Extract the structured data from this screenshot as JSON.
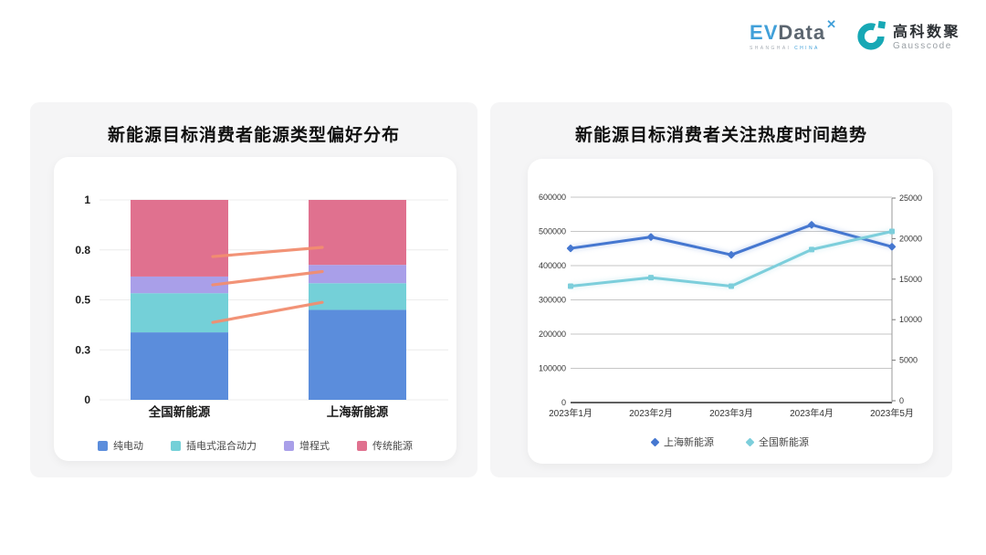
{
  "logos": {
    "evdata": {
      "ev": "EV",
      "data": "Data",
      "mark": "✕",
      "sub_left": "SHANGHAI",
      "sub_right": "CHINA",
      "accent": "#41A0D9",
      "text_color": "#5C6670"
    },
    "gausscode": {
      "cn": "高科数聚",
      "en": "Gausscode",
      "accent": "#17A8B5",
      "text_color": "#2B2F33"
    }
  },
  "chart_data": [
    {
      "type": "bar",
      "stacked": true,
      "title": "新能源目标消费者能源类型偏好分布",
      "categories": [
        "全国新能源",
        "上海新能源"
      ],
      "series": [
        {
          "name": "纯电动",
          "color": "#5B8DDC",
          "values": [
            0.37,
            0.46
          ]
        },
        {
          "name": "插电式混合动力",
          "color": "#74D0D8",
          "values": [
            0.17,
            0.14
          ]
        },
        {
          "name": "增程式",
          "color": "#A99FE9",
          "values": [
            0.1,
            0.11
          ]
        },
        {
          "name": "传统能源",
          "color": "#E0718F",
          "values": [
            0.36,
            0.29
          ]
        }
      ],
      "y_ticks": [
        0,
        0.3,
        0.5,
        0.8,
        1
      ],
      "ylim": [
        0,
        1
      ],
      "grid": true,
      "legend_position": "bottom",
      "connectors": {
        "color": "#F28E70",
        "lines": [
          {
            "from": 0.76,
            "to": 0.81
          },
          {
            "from": 0.59,
            "to": 0.67
          },
          {
            "from": 0.41,
            "to": 0.49
          }
        ]
      }
    },
    {
      "type": "line",
      "title": "新能源目标消费者关注热度时间趋势",
      "x": [
        "2023年1月",
        "2023年2月",
        "2023年3月",
        "2023年4月",
        "2023年5月"
      ],
      "series": [
        {
          "name": "上海新能源",
          "color": "#4577D0",
          "axis": "right",
          "marker": "diamond",
          "values": [
            18800,
            20200,
            18000,
            21700,
            19000
          ]
        },
        {
          "name": "全国新能源",
          "color": "#7CCEDB",
          "axis": "left",
          "marker": "square",
          "values": [
            340000,
            365000,
            340000,
            447000,
            500000
          ]
        }
      ],
      "left_axis": {
        "min": 0,
        "max": 600000,
        "step": 100000,
        "ticks": [
          "0",
          "100000",
          "200000",
          "300000",
          "400000",
          "500000",
          "600000"
        ]
      },
      "right_axis": {
        "min": 0,
        "max": 25000,
        "step": 5000,
        "ticks": [
          "0",
          "5000",
          "10000",
          "15000",
          "20000",
          "25000"
        ]
      },
      "grid": true,
      "legend_position": "bottom"
    }
  ]
}
